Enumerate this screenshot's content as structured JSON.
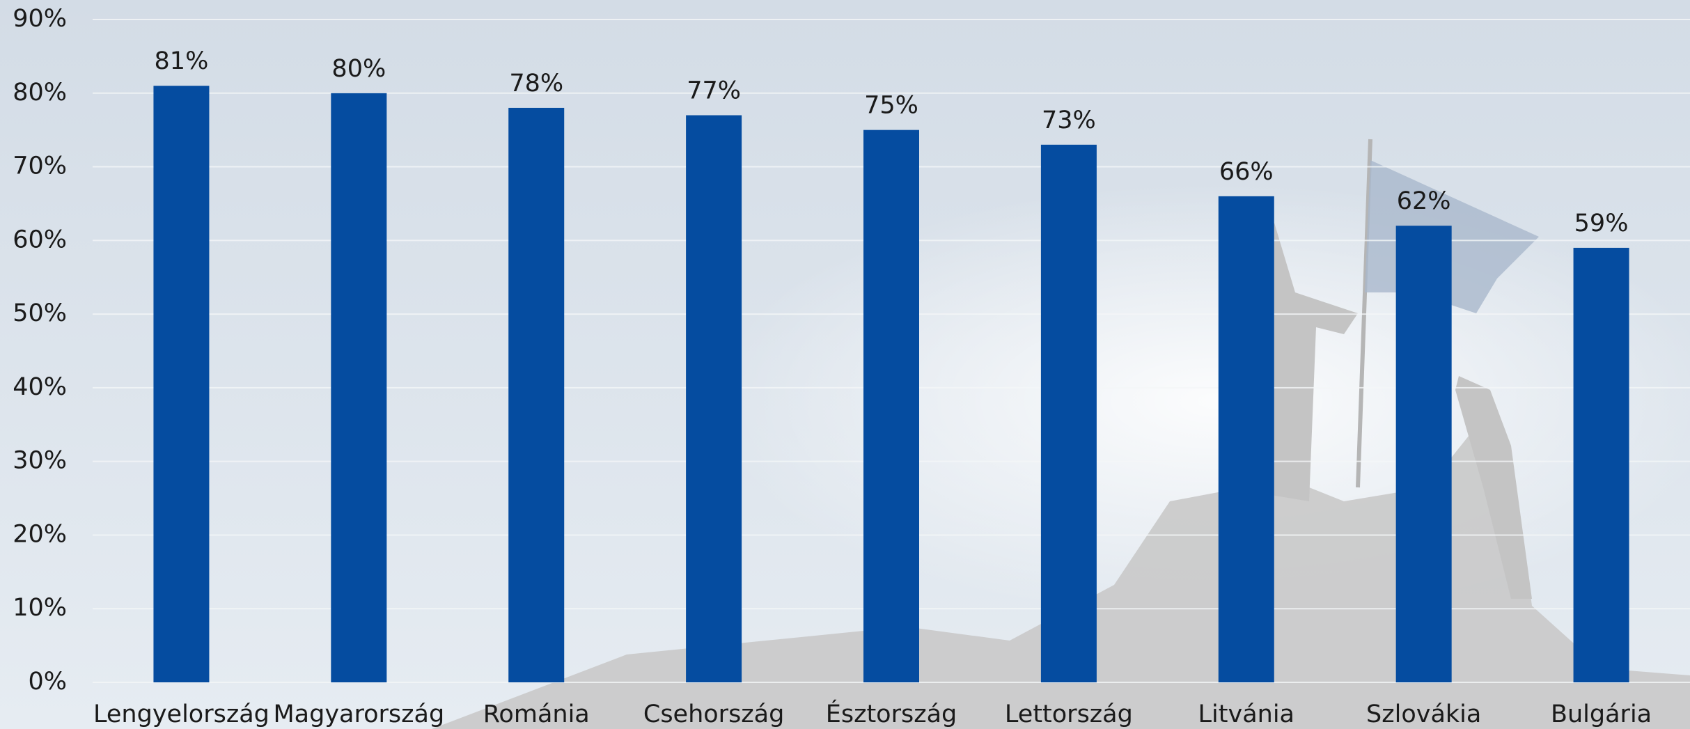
{
  "chart_data": {
    "type": "bar",
    "categories": [
      "Lengyelország",
      "Magyarország",
      "Románia",
      "Csehország",
      "Észtország",
      "Lettország",
      "Litvánia",
      "Szlovákia",
      "Bulgária"
    ],
    "values": [
      81,
      80,
      78,
      77,
      75,
      73,
      66,
      62,
      59
    ],
    "value_labels": [
      "81%",
      "80%",
      "78%",
      "77%",
      "75%",
      "73%",
      "66%",
      "62%",
      "59%"
    ],
    "color": "#054ca0",
    "ylim": [
      0,
      90
    ],
    "yticks": [
      {
        "value": 0,
        "label": "0%"
      },
      {
        "value": 10,
        "label": "10%"
      },
      {
        "value": 20,
        "label": "20%"
      },
      {
        "value": 30,
        "label": "30%"
      },
      {
        "value": 40,
        "label": "40%"
      },
      {
        "value": 50,
        "label": "50%"
      },
      {
        "value": 60,
        "label": "60%"
      },
      {
        "value": 70,
        "label": "70%"
      },
      {
        "value": 80,
        "label": "80%"
      },
      {
        "value": 90,
        "label": "90%"
      }
    ],
    "grid": true
  }
}
